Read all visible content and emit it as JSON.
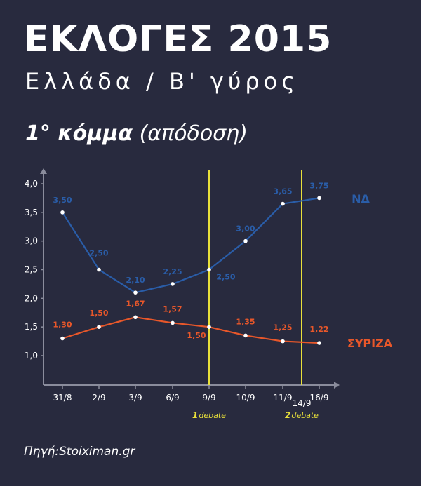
{
  "header": {
    "title": "ΕΚΛΟΓΕΣ 2015",
    "subtitle": "Ελλάδα / Β' γύρος",
    "section_bold": "1° κόμμα",
    "section_light": "(απόδοση)"
  },
  "source": "Πηγή:Stoiximan.gr",
  "colors": {
    "background": "#282a3e",
    "nd": "#2a5da8",
    "syriza": "#e8572a",
    "debate": "#e8e03a"
  },
  "chart_data": {
    "type": "line",
    "categories": [
      "31/8",
      "2/9",
      "3/9",
      "6/9",
      "9/9",
      "10/9",
      "11/9",
      "16/9"
    ],
    "extra_tick": "14/9",
    "ylim": [
      0.6,
      4.2
    ],
    "y_ticks": [
      "4,0",
      "3,5",
      "3,0",
      "2,5",
      "2,0",
      "1,5",
      "1,0"
    ],
    "y_tick_values": [
      4.0,
      3.5,
      3.0,
      2.5,
      2.0,
      1.5,
      1.0
    ],
    "series": [
      {
        "name": "ΝΔ",
        "values": [
          3.5,
          2.5,
          2.1,
          2.25,
          2.5,
          3.0,
          3.65,
          3.75
        ],
        "labels": [
          "3,50",
          "2,50",
          "2,10",
          "2,25",
          "2,50",
          "3,00",
          "3,65",
          "3,75"
        ]
      },
      {
        "name": "ΣΥΡΙΖΑ",
        "values": [
          1.3,
          1.5,
          1.67,
          1.57,
          1.5,
          1.35,
          1.25,
          1.22
        ],
        "labels": [
          "1,30",
          "1,50",
          "1,67",
          "1,57",
          "1,50",
          "1,35",
          "1,25",
          "1,22"
        ]
      }
    ],
    "annotations": [
      {
        "at": "9/9",
        "sup": "1",
        "text": "debate"
      },
      {
        "at": "14/9",
        "sup": "2",
        "text": "debate"
      }
    ]
  }
}
